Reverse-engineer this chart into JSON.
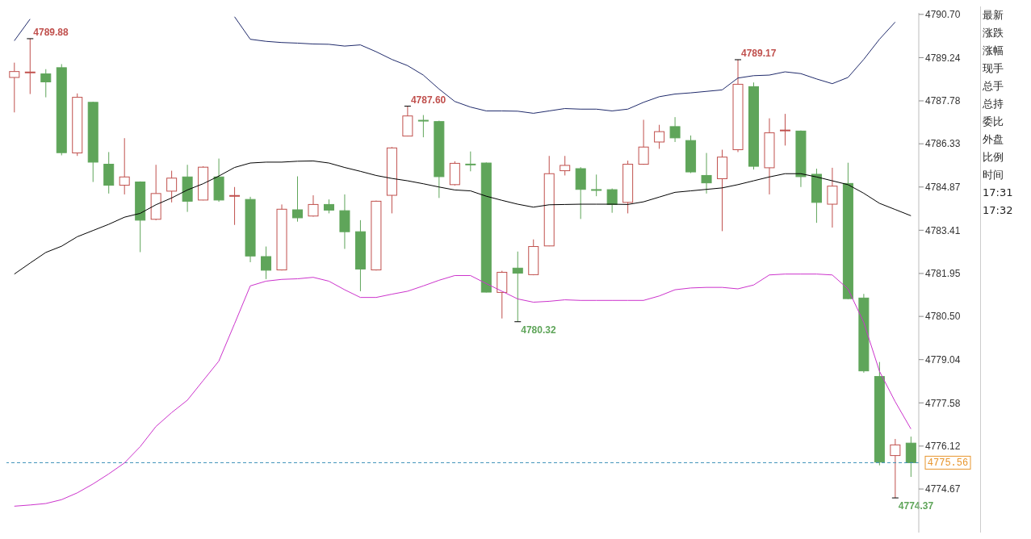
{
  "chart_data": {
    "type": "candlestick",
    "categories": [
      null,
      null,
      null,
      null,
      null,
      null,
      null,
      null,
      null,
      null,
      null,
      null,
      null,
      null,
      null,
      null,
      null,
      null,
      null,
      null,
      null,
      null,
      null,
      null,
      null,
      null,
      null,
      null,
      null,
      null,
      null,
      null,
      null,
      null,
      null,
      null,
      null,
      null,
      null,
      null,
      null,
      null,
      null,
      null,
      null,
      null,
      null,
      null,
      null,
      null,
      null,
      null,
      null,
      null,
      null,
      null,
      null,
      null
    ],
    "ohlc": [
      [
        4788.57,
        4789.07,
        4787.39,
        4788.77
      ],
      [
        4788.72,
        4789.88,
        4788.01,
        4788.74
      ],
      [
        4788.69,
        4788.85,
        4787.9,
        4788.42
      ],
      [
        4788.9,
        4789.02,
        4785.94,
        4786.03
      ],
      [
        4786.02,
        4788.03,
        4785.92,
        4787.9
      ],
      [
        4787.73,
        4787.75,
        4785.04,
        4785.71
      ],
      [
        4785.64,
        4786.05,
        4784.65,
        4784.93
      ],
      [
        4784.93,
        4786.52,
        4784.62,
        4785.21
      ],
      [
        4785.04,
        4785.06,
        4782.67,
        4783.75
      ],
      [
        4783.78,
        4785.62,
        4783.75,
        4784.65
      ],
      [
        4784.73,
        4785.42,
        4784.35,
        4785.17
      ],
      [
        4785.21,
        4785.62,
        4784.03,
        4784.39
      ],
      [
        4784.43,
        4785.57,
        4784.42,
        4785.54
      ],
      [
        4785.21,
        4785.83,
        4784.37,
        4784.43
      ],
      [
        4784.56,
        4784.87,
        4783.59,
        4784.57
      ],
      [
        4784.45,
        4784.54,
        4782.33,
        4782.54
      ],
      [
        4782.52,
        4782.86,
        4781.76,
        4782.06
      ],
      [
        4782.07,
        4784.28,
        4782.05,
        4784.12
      ],
      [
        4784.1,
        4785.23,
        4783.7,
        4783.83
      ],
      [
        4783.89,
        4784.59,
        4783.87,
        4784.28
      ],
      [
        4784.28,
        4784.45,
        4783.98,
        4784.09
      ],
      [
        4784.07,
        4784.62,
        4782.78,
        4783.36
      ],
      [
        4783.36,
        4783.75,
        4781.35,
        4782.1
      ],
      [
        4782.07,
        4784.41,
        4782.05,
        4784.39
      ],
      [
        4784.59,
        4786.22,
        4783.98,
        4786.19
      ],
      [
        4786.59,
        4787.6,
        4786.58,
        4787.27
      ],
      [
        4787.11,
        4787.3,
        4786.55,
        4787.1
      ],
      [
        4787.08,
        4787.11,
        4784.5,
        4785.22
      ],
      [
        4784.95,
        4785.74,
        4784.92,
        4785.67
      ],
      [
        4785.63,
        4786.07,
        4785.4,
        4785.6
      ],
      [
        4785.68,
        4785.7,
        4781.31,
        4781.32
      ],
      [
        4781.31,
        4782.04,
        4780.43,
        4781.99
      ],
      [
        4782.13,
        4782.69,
        4780.32,
        4781.96
      ],
      [
        4781.91,
        4783.1,
        4781.89,
        4782.86
      ],
      [
        4782.88,
        4785.92,
        4782.87,
        4785.32
      ],
      [
        4785.42,
        4785.92,
        4785.26,
        4785.6
      ],
      [
        4785.49,
        4785.54,
        4783.79,
        4784.79
      ],
      [
        4784.77,
        4785.29,
        4784.56,
        4784.75
      ],
      [
        4784.78,
        4784.82,
        4784.0,
        4784.28
      ],
      [
        4784.35,
        4785.76,
        4783.98,
        4785.64
      ],
      [
        4785.64,
        4787.14,
        4785.62,
        4786.22
      ],
      [
        4786.39,
        4786.97,
        4786.16,
        4786.74
      ],
      [
        4786.91,
        4787.23,
        4786.39,
        4786.53
      ],
      [
        4786.44,
        4786.61,
        4785.34,
        4785.38
      ],
      [
        4785.26,
        4786.02,
        4784.65,
        4785.01
      ],
      [
        4785.15,
        4786.13,
        4783.38,
        4785.88
      ],
      [
        4786.13,
        4789.17,
        4786.05,
        4788.34
      ],
      [
        4788.26,
        4788.4,
        4785.46,
        4785.57
      ],
      [
        4785.52,
        4787.19,
        4784.62,
        4786.7
      ],
      [
        4786.77,
        4787.34,
        4786.27,
        4786.78
      ],
      [
        4786.76,
        4786.78,
        4784.87,
        4785.22
      ],
      [
        4785.3,
        4785.49,
        4783.66,
        4784.35
      ],
      [
        4784.29,
        4785.52,
        4783.5,
        4784.9
      ],
      [
        4784.99,
        4785.69,
        4781.08,
        4781.1
      ],
      [
        4781.12,
        4781.26,
        4778.6,
        4778.66
      ],
      [
        4778.47,
        4778.96,
        4775.47,
        4775.58
      ],
      [
        4775.8,
        4776.36,
        4774.37,
        4776.16
      ],
      [
        4776.22,
        4776.44,
        4775.08,
        4775.56
      ]
    ],
    "colors": [
      "#c0504d",
      "#c0504d",
      "#5fa55a",
      "#5fa55a",
      "#c0504d",
      "#5fa55a",
      "#5fa55a",
      "#c0504d",
      "#5fa55a",
      "#c0504d",
      "#c0504d",
      "#5fa55a",
      "#c0504d",
      "#5fa55a",
      "#c0504d",
      "#5fa55a",
      "#5fa55a",
      "#c0504d",
      "#5fa55a",
      "#c0504d",
      "#5fa55a",
      "#5fa55a",
      "#5fa55a",
      "#c0504d",
      "#c0504d",
      "#c0504d",
      "#5fa55a",
      "#5fa55a",
      "#c0504d",
      "#5fa55a",
      "#5fa55a",
      "#c0504d",
      "#5fa55a",
      "#c0504d",
      "#c0504d",
      "#c0504d",
      "#5fa55a",
      "#5fa55a",
      "#5fa55a",
      "#c0504d",
      "#c0504d",
      "#c0504d",
      "#5fa55a",
      "#5fa55a",
      "#5fa55a",
      "#c0504d",
      "#c0504d",
      "#5fa55a",
      "#c0504d",
      "#c0504d",
      "#5fa55a",
      "#5fa55a",
      "#c0504d",
      "#5fa55a",
      "#5fa55a",
      "#5fa55a",
      "#c0504d",
      "#5fa55a"
    ],
    "series": [
      {
        "type": "line",
        "color": "#1f2a6b",
        "values": [
          4789.81,
          4790.54,
          null,
          null,
          null,
          null,
          null,
          null,
          null,
          null,
          null,
          null,
          null,
          null,
          4790.62,
          4789.86,
          4789.79,
          4789.75,
          4789.73,
          4789.7,
          4789.69,
          4789.63,
          4789.67,
          4789.44,
          4789.18,
          4788.97,
          4788.65,
          4788.18,
          4787.76,
          4787.57,
          4787.44,
          4787.44,
          4787.43,
          4787.36,
          4787.44,
          4787.52,
          4787.5,
          4787.5,
          4787.44,
          4787.5,
          4787.73,
          4787.92,
          4788.01,
          4788.05,
          4788.1,
          4788.15,
          4788.55,
          4788.63,
          4788.65,
          4788.76,
          4788.7,
          4788.52,
          4788.36,
          4788.57,
          4789.18,
          4789.86,
          4790.44,
          null
        ]
      },
      {
        "type": "line",
        "color": "#000000",
        "values": [
          4781.93,
          4782.3,
          4782.66,
          4782.87,
          4783.19,
          4783.4,
          4783.61,
          4783.85,
          4783.98,
          4784.27,
          4784.5,
          4784.77,
          4784.98,
          4785.24,
          4785.53,
          4785.68,
          4785.71,
          4785.71,
          4785.74,
          4785.75,
          4785.68,
          4785.53,
          4785.4,
          4785.26,
          4785.16,
          4785.08,
          4784.98,
          4784.87,
          4784.77,
          4784.74,
          4784.56,
          4784.42,
          4784.29,
          4784.19,
          4784.27,
          4784.28,
          4784.29,
          4784.29,
          4784.29,
          4784.28,
          4784.37,
          4784.53,
          4784.69,
          4784.74,
          4784.79,
          4784.84,
          4784.95,
          4785.08,
          4785.21,
          4785.32,
          4785.32,
          4785.21,
          4785.08,
          4784.95,
          4784.66,
          4784.32,
          4784.11,
          4783.9
        ]
      },
      {
        "type": "line",
        "color": "#cc33cc",
        "values": [
          4774.09,
          4774.13,
          4774.18,
          4774.31,
          4774.54,
          4774.84,
          4775.18,
          4775.55,
          4776.1,
          4776.78,
          4777.25,
          4777.67,
          4778.33,
          4778.99,
          4780.25,
          4781.53,
          4781.69,
          4781.75,
          4781.77,
          4781.82,
          4781.69,
          4781.4,
          4781.14,
          4781.14,
          4781.25,
          4781.35,
          4781.53,
          4781.72,
          4781.88,
          4781.88,
          4781.61,
          4781.35,
          4781.09,
          4780.98,
          4781.01,
          4781.06,
          4781.04,
          4781.04,
          4781.04,
          4781.04,
          4781.04,
          4781.19,
          4781.4,
          4781.46,
          4781.48,
          4781.48,
          4781.43,
          4781.56,
          4781.9,
          4781.93,
          4781.93,
          4781.93,
          4781.9,
          4781.43,
          4780.3,
          4778.65,
          4777.62,
          4776.7
        ]
      }
    ],
    "ylim": [
      4773.2,
      4790.75
    ],
    "yticks": [
      {
        "value": 4790.7,
        "label": "4790.70"
      },
      4789.24,
      4787.78,
      4786.33,
      4784.87,
      4783.41,
      4781.95,
      {
        "value": 4780.5,
        "label": "4780.50"
      },
      4779.04,
      4777.58,
      4776.12,
      4774.67
    ],
    "tick_labels": "y",
    "ref_lines": [
      {
        "axis": "y",
        "value": 4775.56,
        "label": "4775.56",
        "color": "#3a8fb7",
        "line_style": "dashed"
      }
    ],
    "annotations": [
      "4789.88",
      "4787.60",
      "4780.32",
      "4789.17",
      "4774.37",
      "最新",
      "涨跌",
      "涨幅",
      "现手",
      "总手",
      "总持",
      "委比",
      "外盘",
      "比例",
      "时间",
      "17:31",
      "17:32"
    ]
  }
}
